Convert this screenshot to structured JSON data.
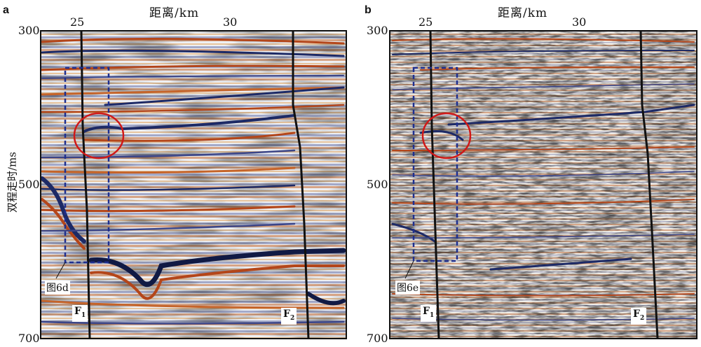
{
  "panels": [
    {
      "letter": "a",
      "x_title": "距离/km",
      "x_ticks": [
        "25",
        "30"
      ],
      "y_ticks": [
        "300",
        "500",
        "700"
      ],
      "y_title": "双程走时/ms",
      "box_label": "图6d",
      "fault_left": {
        "letter": "F",
        "sub": "1"
      },
      "fault_right": {
        "letter": "F",
        "sub": "2"
      }
    },
    {
      "letter": "b",
      "x_title": "距离/km",
      "x_ticks": [
        "25",
        "30"
      ],
      "y_ticks": [
        "300",
        "500",
        "700"
      ],
      "box_label": "图6e",
      "fault_left": {
        "letter": "F",
        "sub": "1"
      },
      "fault_right": {
        "letter": "F",
        "sub": "2"
      }
    }
  ],
  "colors": {
    "positive": "#b4461a",
    "negative": "#1d2a66",
    "circle": "#d01818",
    "box": "#1f2f8f",
    "fault": "#111111"
  }
}
